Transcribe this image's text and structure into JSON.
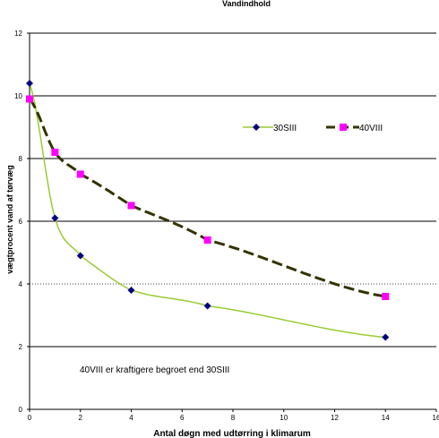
{
  "chart_data": {
    "type": "line",
    "title": "Vandindhold",
    "xlabel": "Antal døgn med udtørring i klimarum",
    "ylabel": "vægtprocent vand af tørvæg",
    "xlim": [
      0,
      16
    ],
    "ylim": [
      0,
      12
    ],
    "x_ticks": [
      "0",
      "2",
      "4",
      "6",
      "8",
      "10",
      "12",
      "14",
      "16"
    ],
    "y_ticks": [
      "0",
      "2",
      "4",
      "6",
      "8",
      "10",
      "12"
    ],
    "grid": "horizontal major gridlines at 2, 6, 8, 10; dotted reference lines at 4",
    "legend_position": "upper-right",
    "annotation": "40VIII er kraftigere begroet end 30SIII",
    "series": [
      {
        "name": "30SIII",
        "marker": "diamond",
        "marker_color": "#000080",
        "trend_color": "#99cc33",
        "x": [
          0,
          1,
          2,
          4,
          7,
          14
        ],
        "y": [
          10.4,
          6.1,
          4.9,
          3.8,
          3.3,
          2.3
        ]
      },
      {
        "name": "40VIII",
        "marker": "square",
        "marker_color": "#ff00ff",
        "trend_color": "#333300",
        "x": [
          0,
          1,
          2,
          4,
          7,
          14
        ],
        "y": [
          9.9,
          8.2,
          7.5,
          6.5,
          5.4,
          3.6
        ]
      }
    ]
  }
}
